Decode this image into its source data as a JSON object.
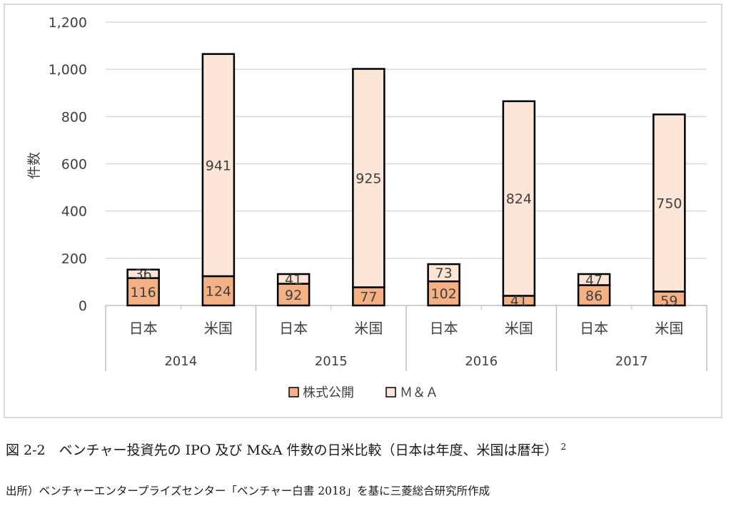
{
  "chart_data": {
    "type": "bar",
    "stacked": true,
    "ylabel": "件数",
    "ylim": [
      0,
      1200
    ],
    "yticks": [
      "0",
      "200",
      "400",
      "600",
      "800",
      "1,000",
      "1,200"
    ],
    "grid": true,
    "legend_position": "bottom",
    "groups": [
      "2014",
      "2015",
      "2016",
      "2017"
    ],
    "categories": [
      "日本",
      "米国",
      "日本",
      "米国",
      "日本",
      "米国",
      "日本",
      "米国"
    ],
    "series": [
      {
        "name": "株式公開",
        "color": "#f4b183",
        "values": [
          116,
          124,
          92,
          77,
          102,
          41,
          86,
          59
        ]
      },
      {
        "name": "M&A",
        "color": "#fbe5d6",
        "values": [
          36,
          941,
          41,
          925,
          73,
          824,
          47,
          750
        ]
      }
    ],
    "legend_labels": [
      "株式公開",
      "Ｍ＆Ａ"
    ]
  },
  "caption": {
    "figure": "図 2-2　ベンチャー投資先の IPO 及び M&A 件数の日米比較（日本は年度、米国は暦年）",
    "footnote_mark": "2",
    "source": "出所）ベンチャーエンタープライズセンター「ベンチャー白書 2018」を基に三菱総合研究所作成"
  }
}
